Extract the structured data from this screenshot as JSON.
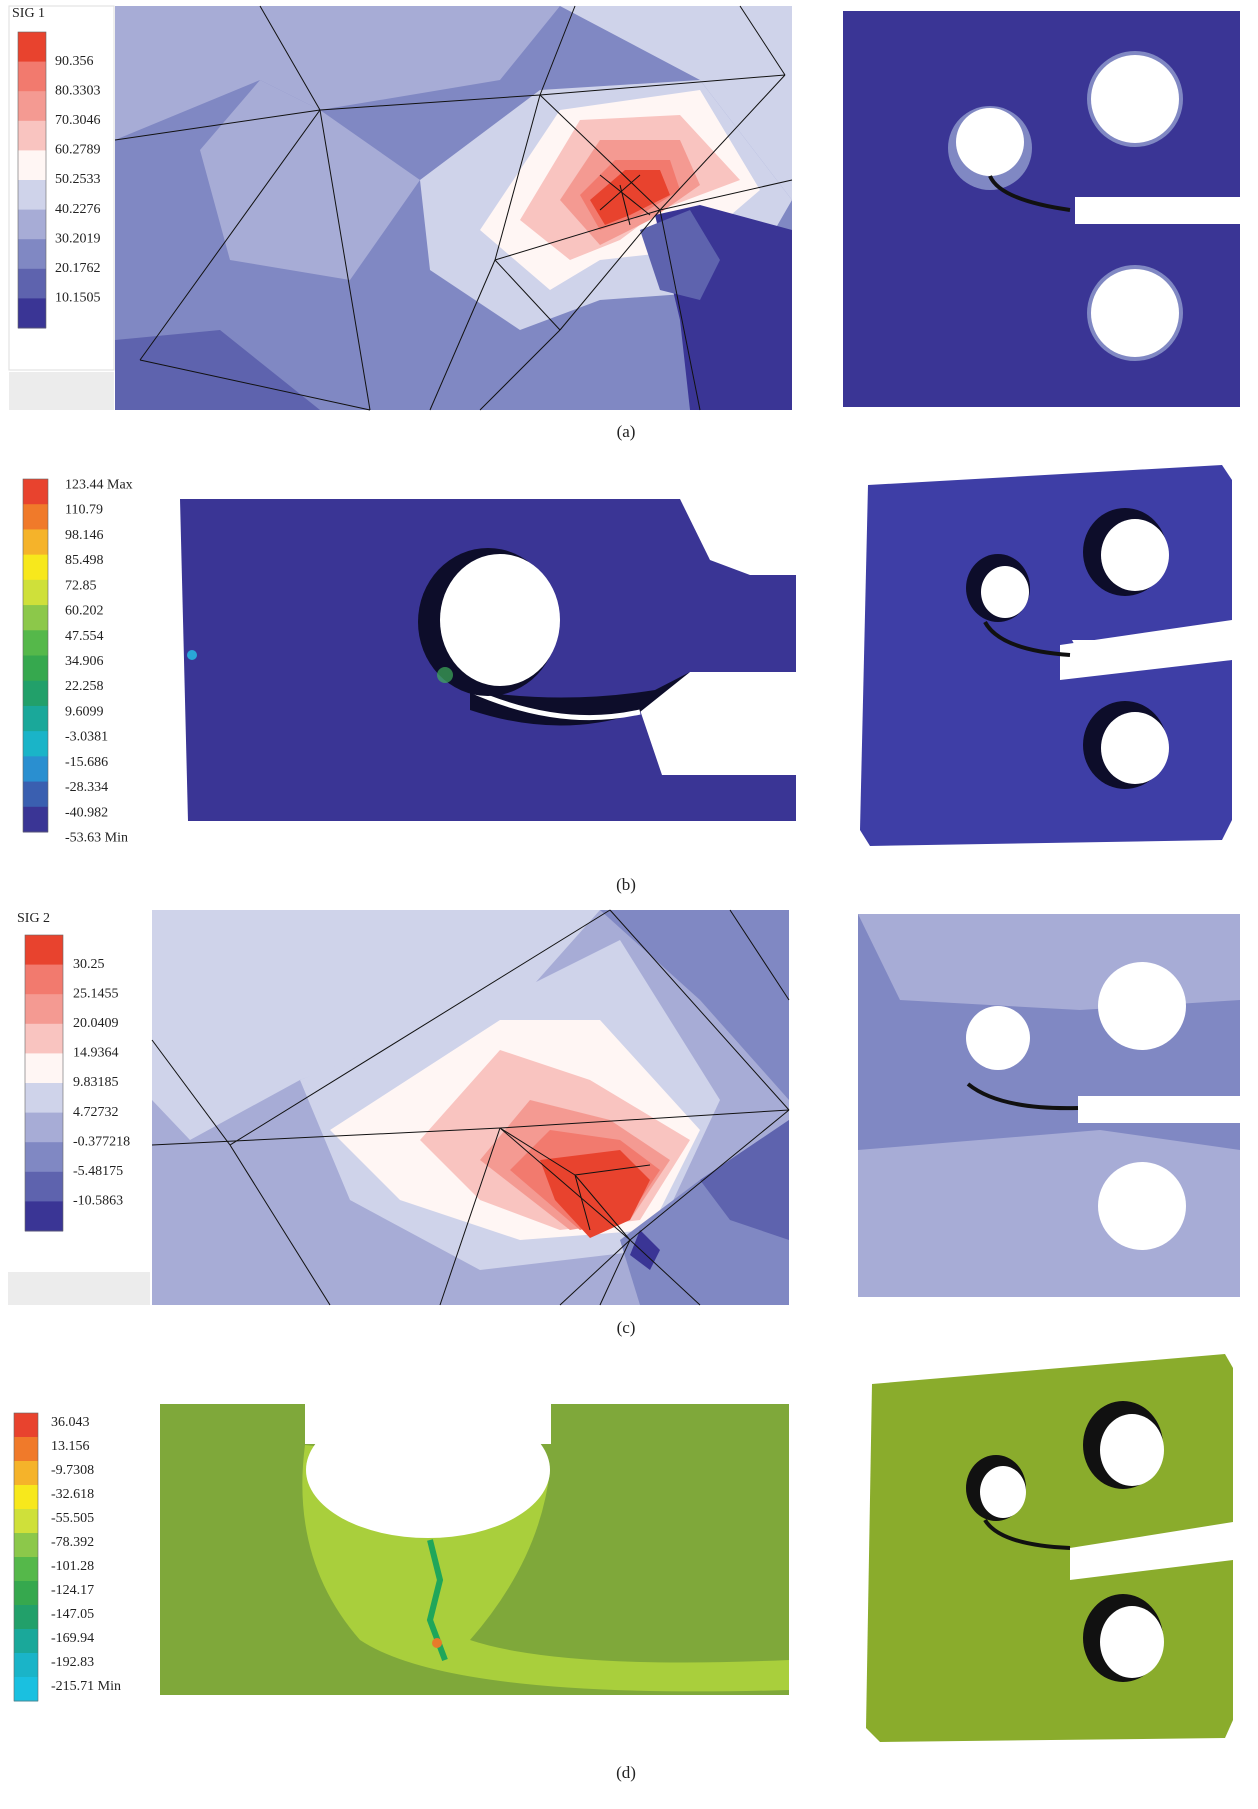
{
  "panels": [
    {
      "legend_title": "SIG 1",
      "legend_labels": [
        "90.356",
        "80.3303",
        "70.3046",
        "60.2789",
        "50.2533",
        "40.2276",
        "30.2019",
        "20.1762",
        "10.1505"
      ],
      "caption": "(a)"
    },
    {
      "legend_labels": [
        "123.44 Max",
        "110.79",
        "98.146",
        "85.498",
        "72.85",
        "60.202",
        "47.554",
        "34.906",
        "22.258",
        "9.6099",
        "-3.0381",
        "-15.686",
        "-28.334",
        "-40.982",
        "-53.63 Min"
      ],
      "caption": "(b)"
    },
    {
      "legend_title": "SIG 2",
      "legend_labels": [
        "30.25",
        "25.1455",
        "20.0409",
        "14.9364",
        "9.83185",
        "4.72732",
        "-0.377218",
        "-5.48175",
        "-10.5863"
      ],
      "caption": "(c)"
    },
    {
      "legend_labels": [
        "36.043",
        "13.156",
        "-9.7308",
        "-32.618",
        "-55.505",
        "-78.392",
        "-101.28",
        "-124.17",
        "-147.05",
        "-169.94",
        "-192.83",
        "-215.71 Min"
      ],
      "caption": "(d)"
    }
  ]
}
